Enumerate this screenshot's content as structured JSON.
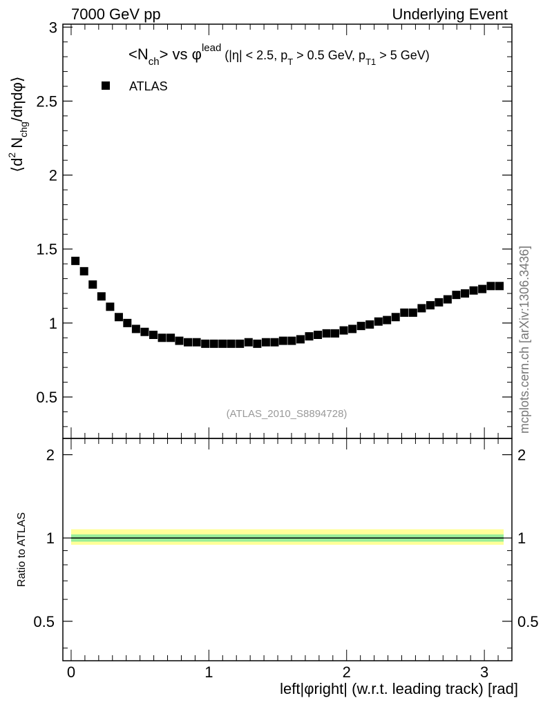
{
  "header": {
    "left": "7000 GeV pp",
    "right": "Underlying Event"
  },
  "watermark": "mcplots.cern.ch [arXiv:1306.3436]",
  "analysis_tag": "(ATLAS_2010_S8894728)",
  "chart_data": [
    {
      "type": "scatter",
      "panel": "main",
      "title": {
        "main": "<N",
        "main_sub": "ch",
        "vs": "> vs φ",
        "vs_sup": "lead",
        "cuts_a": " (|η| < 2.5, p",
        "cuts_sub_t": "T",
        "cuts_b": " > 0.5 GeV, p",
        "cuts_sub_t1": "T1",
        "cuts_c": " > 5 GeV)"
      },
      "ylabel": {
        "a": "⟨d",
        "sup": "2",
        "b": " N",
        "sub": "chg",
        "c": "/dηdφ⟩"
      },
      "xlim": [
        -0.06,
        3.2
      ],
      "ylim": [
        0.22,
        3.02
      ],
      "yticks": [
        "0.5",
        "1",
        "1.5",
        "2",
        "2.5",
        "3"
      ],
      "legend": {
        "label": "ATLAS",
        "placement": "top-left"
      },
      "series": [
        {
          "name": "ATLAS",
          "x": [
            0.031,
            0.094,
            0.157,
            0.22,
            0.283,
            0.346,
            0.408,
            0.471,
            0.534,
            0.597,
            0.66,
            0.723,
            0.785,
            0.848,
            0.911,
            0.974,
            1.037,
            1.1,
            1.162,
            1.225,
            1.288,
            1.351,
            1.414,
            1.477,
            1.539,
            1.602,
            1.665,
            1.728,
            1.791,
            1.854,
            1.916,
            1.979,
            2.042,
            2.105,
            2.168,
            2.231,
            2.293,
            2.356,
            2.419,
            2.482,
            2.545,
            2.608,
            2.67,
            2.733,
            2.796,
            2.859,
            2.922,
            2.985,
            3.047,
            3.11
          ],
          "y": [
            1.42,
            1.35,
            1.26,
            1.18,
            1.11,
            1.04,
            1.0,
            0.96,
            0.94,
            0.92,
            0.9,
            0.9,
            0.88,
            0.87,
            0.87,
            0.86,
            0.86,
            0.86,
            0.86,
            0.86,
            0.87,
            0.86,
            0.87,
            0.87,
            0.88,
            0.88,
            0.89,
            0.91,
            0.92,
            0.93,
            0.93,
            0.95,
            0.96,
            0.98,
            0.99,
            1.01,
            1.02,
            1.04,
            1.07,
            1.07,
            1.1,
            1.12,
            1.14,
            1.16,
            1.19,
            1.2,
            1.22,
            1.23,
            1.25,
            1.25
          ]
        }
      ]
    },
    {
      "type": "line",
      "panel": "ratio",
      "ylabel": "Ratio to ATLAS",
      "xlabel": "left|φright| (w.r.t. leading track) [rad]",
      "xlim": [
        -0.06,
        3.2
      ],
      "xticks": [
        "0",
        "1",
        "2",
        "3"
      ],
      "ylim": [
        0.36,
        2.29
      ],
      "yticks": [
        "0.5",
        "1",
        "2"
      ],
      "reference_line": 1.0,
      "bands": [
        {
          "kind": "total uncertainty",
          "color": "#ffff99",
          "lower": 0.945,
          "upper": 1.075
        },
        {
          "kind": "statistical uncertainty",
          "color": "#99ee99",
          "lower": 0.97,
          "upper": 1.03
        }
      ],
      "band_xrange": [
        0.0,
        3.14
      ]
    }
  ],
  "colors": {
    "marker": "#000000",
    "band_outer": "#ffff99",
    "band_inner": "#99ee99",
    "tag": "#999999",
    "watermark": "#777777"
  }
}
